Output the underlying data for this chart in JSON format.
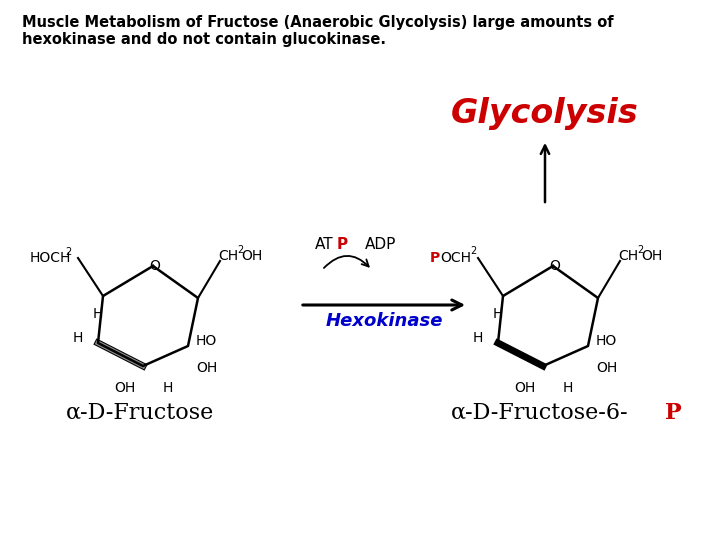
{
  "title_text": "Muscle Metabolism of Fructose (Anaerobic Glycolysis) large amounts of\nhexokinase and do not contain glucokinase.",
  "title_fontsize": 10.5,
  "bg_color": "#ffffff",
  "glycolysis_text": "Glycolysis",
  "glycolysis_color": "#cc0000",
  "glycolysis_fontsize": 24,
  "hexokinase_text": "Hexokinase",
  "hexokinase_color": "#0000cc",
  "p_color": "#cc0000",
  "label_fructose": "α-D-Fructose",
  "label_fructose6p": "α-D-Fructose-6-",
  "label_p_suffix": "P"
}
